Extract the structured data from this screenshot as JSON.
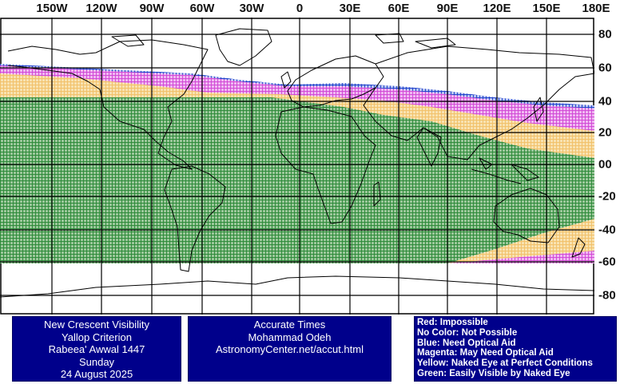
{
  "map": {
    "lon_labels": [
      "150W",
      "120W",
      "90W",
      "60W",
      "30W",
      "0",
      "30E",
      "60E",
      "90E",
      "120E",
      "150E",
      "180E"
    ],
    "lat_labels": [
      "80",
      "60",
      "40",
      "20",
      "00",
      "-20",
      "-40",
      "-60",
      "-80"
    ],
    "zone_colors": {
      "green": "#2e8b3a",
      "yellow": "#f2c16a",
      "magenta": "#d24ad6",
      "blue": "#2244cc",
      "grid": "#000000",
      "coast": "#000000"
    }
  },
  "panels": {
    "left": {
      "line1": "New Crescent Visibility",
      "line2": "Yallop Criterion",
      "line3": "Rabeea' Awwal 1447",
      "line4": "Sunday",
      "line5": "24 August 2025"
    },
    "middle": {
      "line1": "Accurate Times",
      "line2": "Mohammad Odeh",
      "line3": "AstronomyCenter.net/accut.html"
    },
    "legend": {
      "red": "Red: Impossible",
      "nocolor": "No Color: Not Possible",
      "blue": "Blue: Need Optical Aid",
      "magenta": "Magenta: May Need Optical Aid",
      "yellow": "Yellow: Naked Eye at Perfect Conditions",
      "green": "Green: Easily Visible by Naked Eye"
    }
  }
}
